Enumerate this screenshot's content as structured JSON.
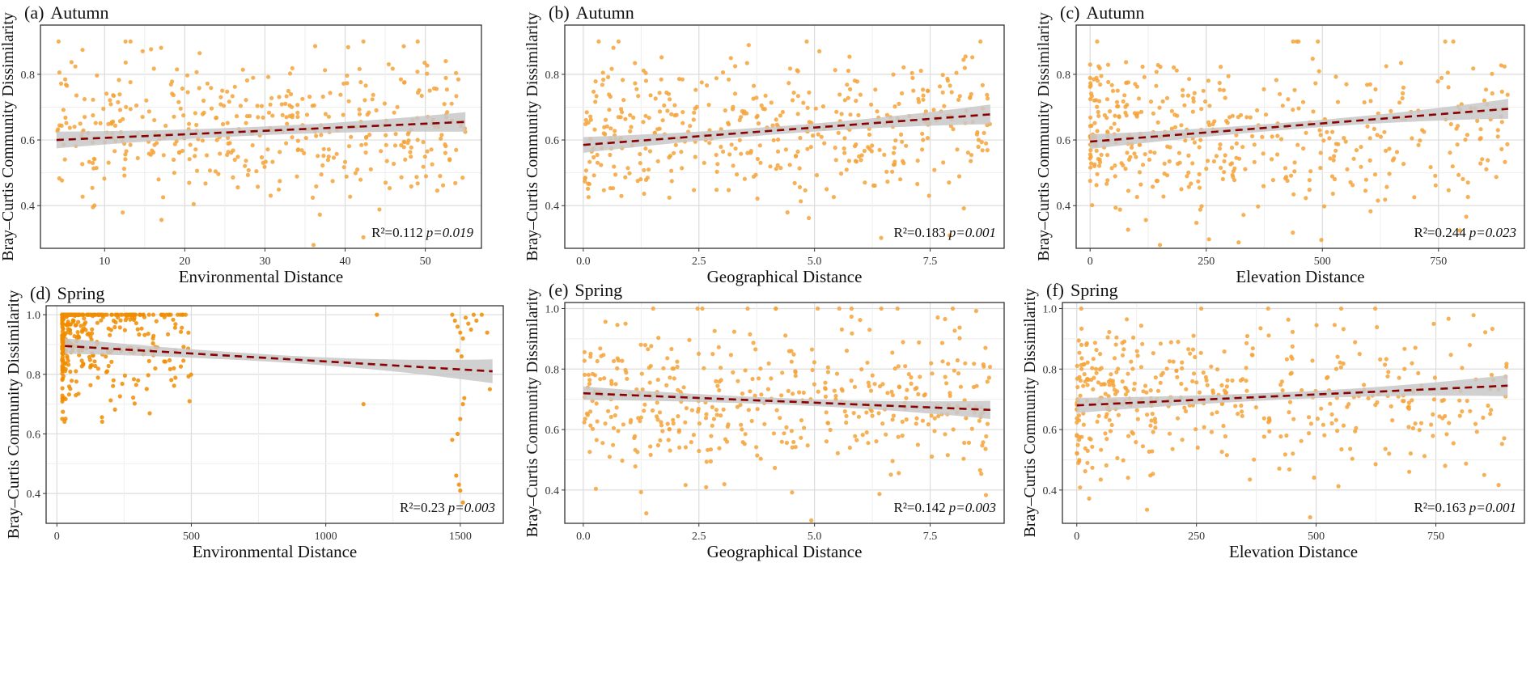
{
  "figure": {
    "point_color": "#f4a338",
    "point_color_dense": "#f08c00",
    "line_color": "#8b0000",
    "band_color": "#c8c8c8"
  },
  "chart_data": [
    {
      "id": "a",
      "type": "scatter",
      "label": "(a)",
      "season": "Autumn",
      "xlabel": "Environmental Distance",
      "ylabel": "Bray–Curtis Community Dissimilarity",
      "xlim": [
        2,
        57
      ],
      "ylim": [
        0.27,
        0.95
      ],
      "xticks": [
        10,
        20,
        30,
        40,
        50
      ],
      "xtick_labels": [
        "10",
        "20",
        "30",
        "40",
        "50"
      ],
      "yticks": [
        0.4,
        0.6,
        0.8
      ],
      "ytick_labels": [
        "0.4",
        "0.6",
        "0.8"
      ],
      "fit": {
        "x0": 4,
        "y0": 0.6,
        "x1": 55,
        "y1": 0.655,
        "ci_start": 0.022,
        "ci_end": 0.03
      },
      "stats": {
        "r2_label": "R²=0.112",
        "p_label": "p=0.019"
      },
      "scatter": {
        "n": 430,
        "x_min": 4,
        "x_max": 55,
        "y_mean": 0.63,
        "y_sd": 0.11,
        "y_min": 0.28,
        "y_max": 0.9,
        "x_skew": 1.0,
        "seed": 11
      }
    },
    {
      "id": "b",
      "type": "scatter",
      "label": "(b)",
      "season": "Autumn",
      "xlabel": "Geographical Distance",
      "ylabel": "Bray–Curtis Community Dissimilarity",
      "xlim": [
        -0.4,
        9.1
      ],
      "ylim": [
        0.27,
        0.95
      ],
      "xticks": [
        0,
        2.5,
        5,
        7.5
      ],
      "xtick_labels": [
        "0.0",
        "2.5",
        "5.0",
        "7.5"
      ],
      "yticks": [
        0.4,
        0.6,
        0.8
      ],
      "ytick_labels": [
        "0.4",
        "0.6",
        "0.8"
      ],
      "fit": {
        "x0": 0,
        "y0": 0.585,
        "x1": 8.8,
        "y1": 0.678,
        "ci_start": 0.02,
        "ci_end": 0.03
      },
      "stats": {
        "r2_label": "R²=0.183",
        "p_label": "p=0.001"
      },
      "scatter": {
        "n": 430,
        "x_min": 0,
        "x_max": 8.8,
        "y_mean": 0.625,
        "y_sd": 0.11,
        "y_min": 0.29,
        "y_max": 0.9,
        "x_skew": 1.1,
        "seed": 23
      }
    },
    {
      "id": "c",
      "type": "scatter",
      "label": "(c)",
      "season": "Autumn",
      "xlabel": "Elevation Distance",
      "ylabel": "Bray–Curtis Community Dissimilarity",
      "xlim": [
        -30,
        935
      ],
      "ylim": [
        0.27,
        0.95
      ],
      "xticks": [
        0,
        250,
        500,
        750
      ],
      "xtick_labels": [
        "0",
        "250",
        "500",
        "750"
      ],
      "yticks": [
        0.4,
        0.6,
        0.8
      ],
      "ytick_labels": [
        "0.4",
        "0.6",
        "0.8"
      ],
      "fit": {
        "x0": 0,
        "y0": 0.595,
        "x1": 900,
        "y1": 0.695,
        "ci_start": 0.018,
        "ci_end": 0.03
      },
      "stats": {
        "r2_label": "R²=0.244",
        "p_label": "p=0.023"
      },
      "scatter": {
        "n": 450,
        "x_min": 0,
        "x_max": 900,
        "y_mean": 0.62,
        "y_sd": 0.12,
        "y_min": 0.28,
        "y_max": 0.9,
        "x_skew": 1.8,
        "seed": 37
      }
    },
    {
      "id": "d",
      "type": "scatter",
      "label": "(d)",
      "season": "Spring",
      "xlabel": "Environmental Distance",
      "ylabel": "Bray–Curtis Community Dissimilarity",
      "xlim": [
        -40,
        1660
      ],
      "ylim": [
        0.3,
        1.03
      ],
      "xticks": [
        0,
        500,
        1000,
        1500
      ],
      "xtick_labels": [
        "0",
        "500",
        "1000",
        "1500"
      ],
      "yticks": [
        0.4,
        0.6,
        0.8,
        1.0
      ],
      "ytick_labels": [
        "0.4",
        "0.6",
        "0.8",
        "1.0"
      ],
      "fit": {
        "x0": 30,
        "y0": 0.895,
        "x1": 1620,
        "y1": 0.81,
        "ci_start": 0.02,
        "ci_end": 0.04
      },
      "stats": {
        "r2_label": "R²=0.23",
        "p_label": "p=0.003"
      },
      "scatter": {
        "n": 430,
        "x_min": 20,
        "x_max": 500,
        "y_mean": 0.9,
        "y_sd": 0.12,
        "y_min": 0.32,
        "y_max": 1.0,
        "x_skew": 3.0,
        "seed": 51,
        "clip_top": true
      },
      "extra_points": [
        [
          1470,
          1.0
        ],
        [
          1480,
          0.98
        ],
        [
          1490,
          0.96
        ],
        [
          1500,
          0.94
        ],
        [
          1510,
          0.92
        ],
        [
          1520,
          0.99
        ],
        [
          1530,
          0.97
        ],
        [
          1540,
          0.95
        ],
        [
          1550,
          1.0
        ],
        [
          1560,
          0.98
        ],
        [
          1580,
          1.0
        ],
        [
          1600,
          0.94
        ],
        [
          1490,
          0.88
        ],
        [
          1505,
          0.86
        ],
        [
          1515,
          0.72
        ],
        [
          1500,
          0.65
        ],
        [
          1490,
          0.6
        ],
        [
          1485,
          0.46
        ],
        [
          1495,
          0.43
        ],
        [
          1500,
          0.41
        ],
        [
          1510,
          0.37
        ],
        [
          1470,
          0.58
        ],
        [
          1610,
          0.75
        ],
        [
          1140,
          0.7
        ],
        [
          1190,
          1.0
        ],
        [
          1510,
          0.7
        ]
      ]
    },
    {
      "id": "e",
      "type": "scatter",
      "label": "(e)",
      "season": "Spring",
      "xlabel": "Geographical  Distance",
      "ylabel": "Bray–Curtis Community Dissimilarity",
      "xlim": [
        -0.4,
        9.1
      ],
      "ylim": [
        0.29,
        1.02
      ],
      "xticks": [
        0,
        2.5,
        5,
        7.5
      ],
      "xtick_labels": [
        "0.0",
        "2.5",
        "5.0",
        "7.5"
      ],
      "yticks": [
        0.4,
        0.6,
        0.8,
        1.0
      ],
      "ytick_labels": [
        "0.4",
        "0.6",
        "0.8",
        "1.0"
      ],
      "fit": {
        "x0": 0,
        "y0": 0.72,
        "x1": 8.8,
        "y1": 0.665,
        "ci_start": 0.018,
        "ci_end": 0.03
      },
      "stats": {
        "r2_label": "R²=0.142",
        "p_label": "p=0.003"
      },
      "scatter": {
        "n": 430,
        "x_min": 0,
        "x_max": 8.8,
        "y_mean": 0.7,
        "y_sd": 0.13,
        "y_min": 0.3,
        "y_max": 1.0,
        "x_skew": 1.1,
        "seed": 67
      }
    },
    {
      "id": "f",
      "type": "scatter",
      "label": "(f)",
      "season": "Spring",
      "xlabel": "Elevation Distance",
      "ylabel": "Bray–Curtis Community Dissimilarity",
      "xlim": [
        -30,
        935
      ],
      "ylim": [
        0.29,
        1.02
      ],
      "xticks": [
        0,
        250,
        500,
        750
      ],
      "xtick_labels": [
        "0",
        "250",
        "500",
        "750"
      ],
      "yticks": [
        0.4,
        0.6,
        0.8,
        1.0
      ],
      "ytick_labels": [
        "0.4",
        "0.6",
        "0.8",
        "1.0"
      ],
      "fit": {
        "x0": 0,
        "y0": 0.68,
        "x1": 900,
        "y1": 0.745,
        "ci_start": 0.02,
        "ci_end": 0.035
      },
      "stats": {
        "r2_label": "R²=0.163",
        "p_label": "p=0.001"
      },
      "scatter": {
        "n": 450,
        "x_min": 0,
        "x_max": 900,
        "y_mean": 0.7,
        "y_sd": 0.13,
        "y_min": 0.31,
        "y_max": 1.0,
        "x_skew": 1.8,
        "seed": 79
      }
    }
  ]
}
